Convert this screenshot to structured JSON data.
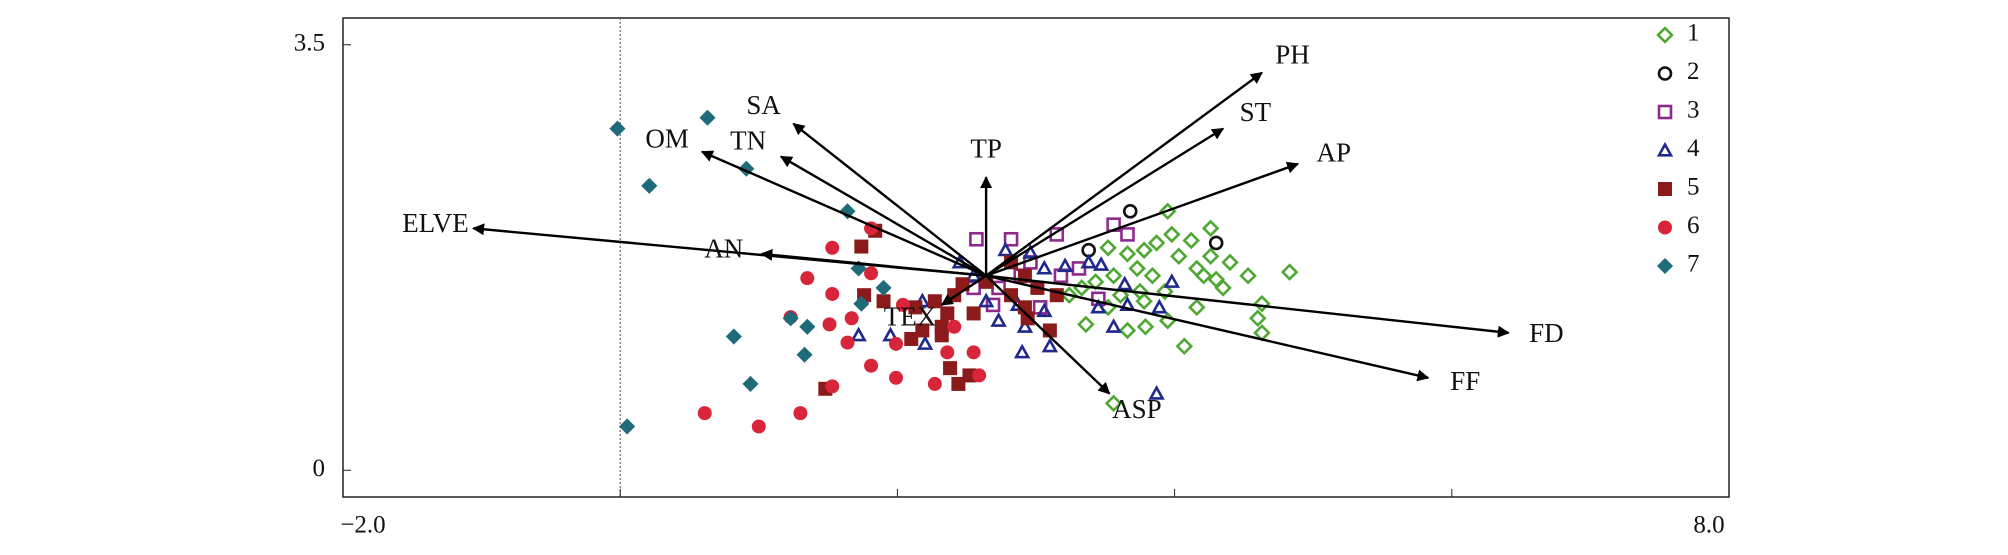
{
  "chart_data": {
    "type": "biplot",
    "xlim": [
      -2,
      8
    ],
    "ylim": [
      -0.22,
      3.72
    ],
    "xticks": [
      {
        "value": -2,
        "label": "−2.0"
      },
      {
        "value": 8,
        "label": "8.0"
      }
    ],
    "yticks": [
      0,
      3.5
    ],
    "minor_xticks": [
      0,
      2,
      4,
      6
    ],
    "reference_line_x": 0,
    "legend": "upper right",
    "origin": [
      2.64,
      1.6
    ],
    "vectors": [
      {
        "name": "PH",
        "x": 4.63,
        "y": 3.27
      },
      {
        "name": "ST",
        "x": 4.35,
        "y": 2.81
      },
      {
        "name": "AP",
        "x": 4.89,
        "y": 2.52
      },
      {
        "name": "SA",
        "x": 1.25,
        "y": 2.85
      },
      {
        "name": "TN",
        "x": 1.16,
        "y": 2.58
      },
      {
        "name": "OM",
        "x": 0.59,
        "y": 2.62
      },
      {
        "name": "TP",
        "x": 2.64,
        "y": 2.41
      },
      {
        "name": "ELVE",
        "x": -1.06,
        "y": 1.99
      },
      {
        "name": "AN",
        "x": 1.02,
        "y": 1.78
      },
      {
        "name": "TEX",
        "x": 2.32,
        "y": 1.36
      },
      {
        "name": "FD",
        "x": 6.41,
        "y": 1.13
      },
      {
        "name": "FF",
        "x": 5.83,
        "y": 0.76
      },
      {
        "name": "ASP",
        "x": 3.53,
        "y": 0.63
      }
    ],
    "series": [
      {
        "name": "1",
        "color": "#4fa833",
        "marker": "diamond",
        "filled": false,
        "x": [
          3.95,
          4.26,
          4.12,
          3.98,
          3.87,
          3.78,
          3.66,
          3.52,
          3.73,
          3.84,
          3.56,
          3.43,
          3.33,
          3.61,
          3.75,
          3.93,
          4.16,
          4.21,
          4.3,
          4.35,
          4.53,
          4.83,
          4.63,
          4.6,
          4.63,
          4.16,
          3.95,
          3.79,
          3.66,
          3.36,
          4.07,
          3.56,
          3.78,
          4.03,
          4.26,
          3.52,
          3.24,
          4.4
        ],
        "values": [
          2.13,
          1.99,
          1.89,
          1.94,
          1.87,
          1.81,
          1.78,
          1.83,
          1.66,
          1.6,
          1.6,
          1.55,
          1.5,
          1.44,
          1.47,
          1.47,
          1.66,
          1.6,
          1.57,
          1.5,
          1.6,
          1.63,
          1.37,
          1.25,
          1.13,
          1.34,
          1.23,
          1.18,
          1.15,
          1.2,
          1.02,
          0.55,
          1.39,
          1.76,
          1.76,
          1.34,
          1.44,
          1.71
        ]
      },
      {
        "name": "2",
        "color": "#111111",
        "marker": "circle",
        "filled": false,
        "x": [
          3.68,
          3.38,
          4.3
        ],
        "values": [
          2.13,
          1.81,
          1.87
        ]
      },
      {
        "name": "3",
        "color": "#8e2a8e",
        "marker": "square",
        "filled": false,
        "x": [
          2.57,
          2.82,
          3.15,
          2.96,
          2.89,
          2.73,
          2.55,
          2.69,
          3.18,
          3.31,
          3.56,
          3.66,
          3.45,
          3.03
        ],
        "values": [
          1.9,
          1.9,
          1.94,
          1.71,
          1.6,
          1.5,
          1.5,
          1.36,
          1.6,
          1.66,
          2.02,
          1.94,
          1.41,
          1.34
        ]
      },
      {
        "name": "4",
        "color": "#1f2a8c",
        "marker": "triangle",
        "filled": false,
        "x": [
          2.45,
          2.55,
          2.18,
          1.72,
          1.95,
          2.2,
          2.64,
          2.87,
          2.92,
          3.06,
          2.9,
          2.78,
          2.96,
          3.06,
          3.21,
          3.38,
          3.47,
          3.45,
          3.66,
          3.89,
          3.98,
          3.64,
          3.87,
          3.56,
          2.73,
          3.1
        ],
        "values": [
          1.71,
          1.6,
          1.39,
          1.11,
          1.11,
          1.04,
          1.39,
          1.36,
          1.18,
          1.31,
          0.97,
          1.81,
          1.79,
          1.66,
          1.68,
          1.71,
          1.69,
          1.34,
          1.36,
          1.34,
          1.55,
          1.53,
          0.63,
          1.18,
          1.23,
          1.02
        ]
      },
      {
        "name": "5",
        "color": "#8b1a1a",
        "marker": "square",
        "filled": true,
        "x": [
          1.84,
          1.74,
          1.48,
          1.76,
          1.9,
          2.13,
          2.27,
          2.41,
          2.36,
          2.47,
          2.32,
          2.1,
          2.18,
          2.38,
          2.44,
          2.52,
          2.82,
          2.92,
          2.94,
          3.1,
          3.15,
          2.92,
          2.64,
          2.55,
          2.82,
          3.01,
          2.32
        ],
        "values": [
          1.97,
          1.84,
          0.67,
          1.44,
          1.39,
          1.34,
          1.39,
          1.44,
          1.29,
          1.53,
          1.11,
          1.08,
          1.15,
          0.84,
          0.71,
          0.78,
          1.71,
          1.6,
          1.25,
          1.15,
          1.44,
          1.34,
          1.55,
          1.29,
          1.44,
          1.5,
          1.18
        ]
      },
      {
        "name": "6",
        "color": "#d8253a",
        "marker": "circle",
        "filled": true,
        "x": [
          1.53,
          1.81,
          1.35,
          1.81,
          1.53,
          1.67,
          1.23,
          1.51,
          1.64,
          1.99,
          1.81,
          1.99,
          1.53,
          1.3,
          1.0,
          0.61,
          2.36,
          2.55,
          2.41,
          2.59,
          2.27,
          2.04
        ],
        "values": [
          1.83,
          1.99,
          1.58,
          1.62,
          1.45,
          1.25,
          1.26,
          1.2,
          1.05,
          1.04,
          0.86,
          0.76,
          0.69,
          0.47,
          0.36,
          0.47,
          0.97,
          0.97,
          1.18,
          0.78,
          0.71,
          1.36
        ]
      },
      {
        "name": "7",
        "color": "#1f6b7a",
        "marker": "diamond",
        "filled": true,
        "x": [
          -0.02,
          0.63,
          0.21,
          0.91,
          1.64,
          1.72,
          1.9,
          1.23,
          1.35,
          0.82,
          1.33,
          0.94,
          0.05,
          1.74
        ],
        "values": [
          2.81,
          2.9,
          2.34,
          2.48,
          2.13,
          1.66,
          1.5,
          1.25,
          1.18,
          1.1,
          0.95,
          0.71,
          0.36,
          1.37
        ]
      }
    ]
  }
}
